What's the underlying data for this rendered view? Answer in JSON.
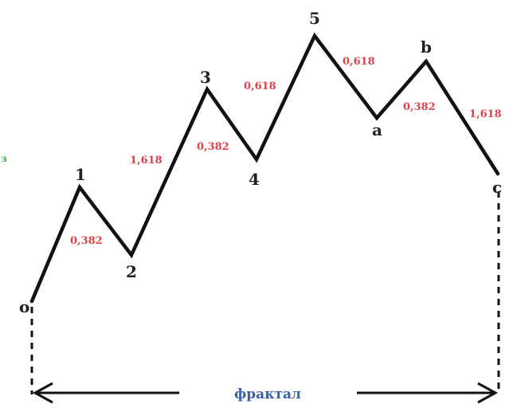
{
  "diagram": {
    "colors": {
      "wave_line": "#111111",
      "point_label": "#222222",
      "ratio": "#e0424a",
      "fractal": "#3b5fa8",
      "edge_fragment": "#3aa845"
    },
    "points": [
      {
        "id": "o",
        "label": "o"
      },
      {
        "id": "1",
        "label": "1"
      },
      {
        "id": "2",
        "label": "2"
      },
      {
        "id": "3",
        "label": "3"
      },
      {
        "id": "4",
        "label": "4"
      },
      {
        "id": "5",
        "label": "5"
      },
      {
        "id": "a",
        "label": "a"
      },
      {
        "id": "b",
        "label": "b"
      },
      {
        "id": "c",
        "label": "c"
      }
    ],
    "ratios": {
      "wave_2": "0,382",
      "wave_3": "1,618",
      "wave_4": "0,382",
      "wave_5": "0,618",
      "wave_a": "0,618",
      "wave_b": "0,382",
      "wave_c": "1,618"
    },
    "fractal_label": "фрактал",
    "edge_fragment": "з"
  }
}
